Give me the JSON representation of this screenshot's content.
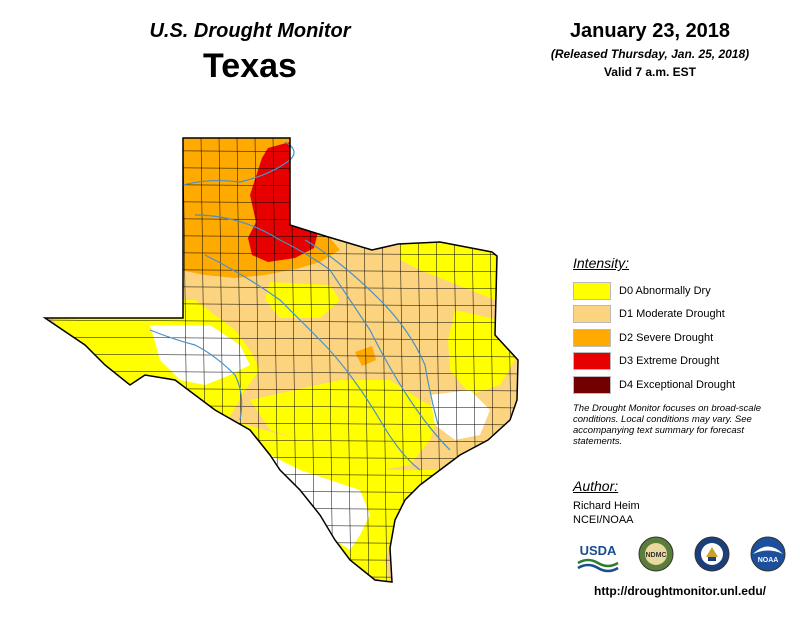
{
  "header": {
    "app_title": "U.S. Drought Monitor",
    "state": "Texas",
    "date": "January 23, 2018",
    "released": "(Released Thursday, Jan. 25, 2018)",
    "valid": "Valid 7 a.m. EST"
  },
  "legend": {
    "title": "Intensity:",
    "items": [
      {
        "label": "D0 Abnormally Dry",
        "color": "#ffff00"
      },
      {
        "label": "D1 Moderate Drought",
        "color": "#fcd37f"
      },
      {
        "label": "D2 Severe Drought",
        "color": "#ffaa00"
      },
      {
        "label": "D3 Extreme Drought",
        "color": "#e60000"
      },
      {
        "label": "D4 Exceptional Drought",
        "color": "#730000"
      }
    ],
    "note": "The Drought Monitor focuses on broad-scale conditions. Local conditions may vary. See accompanying text summary for forecast statements."
  },
  "author": {
    "heading": "Author:",
    "name": "Richard Heim",
    "org": "NCEI/NOAA"
  },
  "logos": [
    {
      "name": "usda-logo",
      "text": "USDA"
    },
    {
      "name": "ndmc-logo",
      "text": "NDMC"
    },
    {
      "name": "commerce-seal-logo",
      "text": ""
    },
    {
      "name": "noaa-logo",
      "text": "NOAA"
    }
  ],
  "url": "http://droughtmonitor.unl.edu/",
  "map_colors": {
    "none": "#ffffff",
    "d0": "#ffff00",
    "d1": "#fcd37f",
    "d2": "#ffaa00",
    "d3": "#e60000",
    "river": "#4a90c8",
    "border": "#000000"
  }
}
